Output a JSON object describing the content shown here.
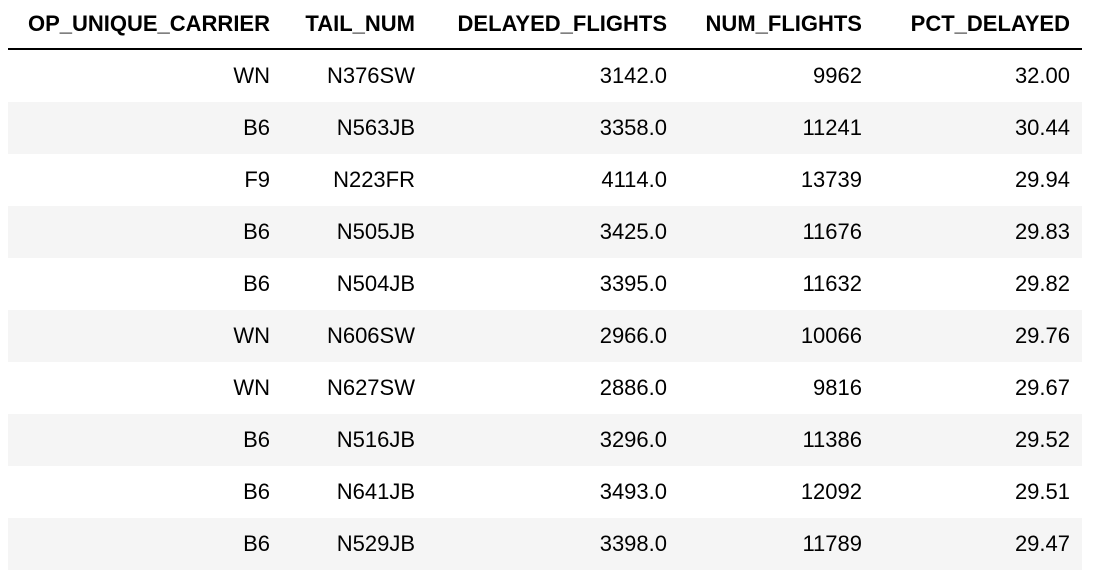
{
  "table": {
    "columns": [
      "OP_UNIQUE_CARRIER",
      "TAIL_NUM",
      "DELAYED_FLIGHTS",
      "NUM_FLIGHTS",
      "PCT_DELAYED"
    ],
    "rows": [
      [
        "WN",
        "N376SW",
        "3142.0",
        "9962",
        "32.00"
      ],
      [
        "B6",
        "N563JB",
        "3358.0",
        "11241",
        "30.44"
      ],
      [
        "F9",
        "N223FR",
        "4114.0",
        "13739",
        "29.94"
      ],
      [
        "B6",
        "N505JB",
        "3425.0",
        "11676",
        "29.83"
      ],
      [
        "B6",
        "N504JB",
        "3395.0",
        "11632",
        "29.82"
      ],
      [
        "WN",
        "N606SW",
        "2966.0",
        "10066",
        "29.76"
      ],
      [
        "WN",
        "N627SW",
        "2886.0",
        "9816",
        "29.67"
      ],
      [
        "B6",
        "N516JB",
        "3296.0",
        "11386",
        "29.52"
      ],
      [
        "B6",
        "N641JB",
        "3493.0",
        "12092",
        "29.51"
      ],
      [
        "B6",
        "N529JB",
        "3398.0",
        "11789",
        "29.47"
      ]
    ]
  }
}
